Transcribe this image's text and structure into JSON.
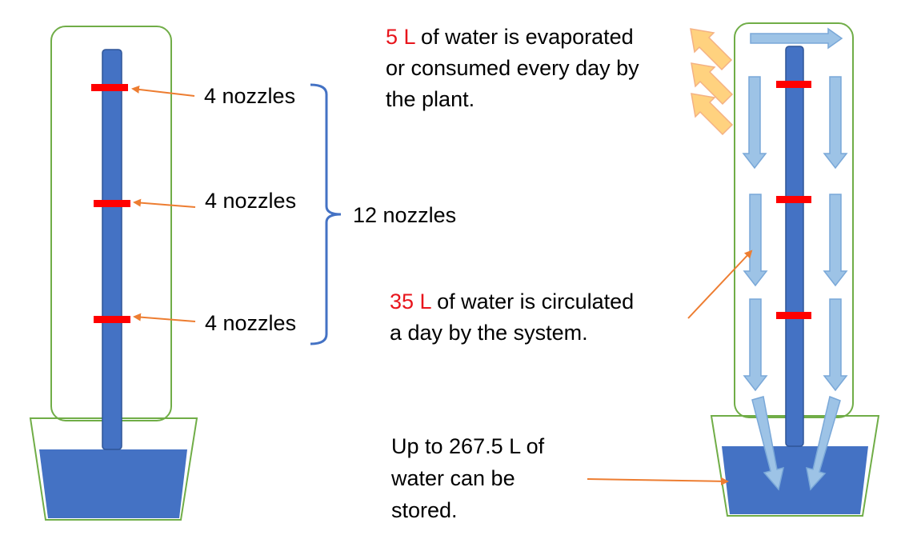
{
  "left_tower": {
    "nozzle_labels": [
      "4 nozzles",
      "4 nozzles",
      "4 nozzles"
    ],
    "total_label": "12 nozzles"
  },
  "right_tower": {
    "evaporation": {
      "amount": "5 L",
      "line1_rest": " of water is evaporated",
      "line2": "or consumed every day by",
      "line3": "the plant."
    },
    "circulation": {
      "amount": "35 L",
      "line1_rest": " of water is circulated",
      "line2": "a day by the system."
    },
    "storage": {
      "line1": "Up to 267.5 L of",
      "line2": "water can be",
      "line3": "stored."
    }
  },
  "colors": {
    "pipe": "#4472c4",
    "water": "#4472c4",
    "nozzle": "#ff0000",
    "tower_outline": "#70ad47",
    "pointer_arrow": "#ed7d31",
    "flow_arrow": "#9dc3e6",
    "evaporation_arrow": "#ffd27f",
    "highlight_text": "#e8151c",
    "bracket": "#4472c4"
  }
}
